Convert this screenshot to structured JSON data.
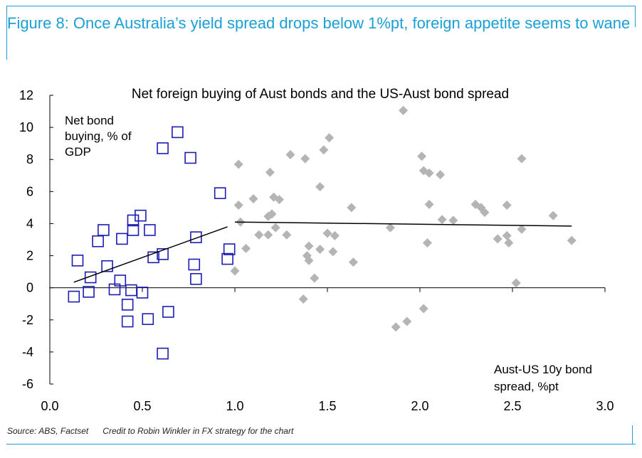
{
  "figure_title": "Figure 8: Once Australia’s yield spread drops below 1%pt, foreign appetite seems to wane",
  "source": "Source: ABS, Factset",
  "credit": "Credit to Robin Winkler in FX strategy for the chart",
  "colors": {
    "accent": "#1aa0d6",
    "blue_squares": "#1c1cb4",
    "grey_diamonds": "#b4b4b4",
    "trend": "#000000"
  },
  "chart_data": {
    "type": "scatter",
    "title": "Net foreign buying of Aust bonds and the US-Aust bond spread",
    "ylabel_lines": [
      "Net bond",
      "buying, % of",
      "GDP"
    ],
    "xlabel_lines": [
      "Aust-US 10y bond",
      "spread, %pt"
    ],
    "xlim": [
      0,
      3
    ],
    "ylim": [
      -6,
      12
    ],
    "x_ticks": [
      "0.0",
      "0.5",
      "1.0",
      "1.5",
      "2.0",
      "2.5",
      "3.0"
    ],
    "x_tick_values": [
      0,
      0.5,
      1,
      1.5,
      2,
      2.5,
      3
    ],
    "y_ticks": [
      "-6",
      "-4",
      "-2",
      "0",
      "2",
      "4",
      "6",
      "8",
      "10",
      "12"
    ],
    "y_tick_values": [
      -6,
      -4,
      -2,
      0,
      2,
      4,
      6,
      8,
      10,
      12
    ],
    "series": [
      {
        "marker": "square",
        "points": [
          [
            0.13,
            -0.55
          ],
          [
            0.15,
            1.7
          ],
          [
            0.21,
            -0.25
          ],
          [
            0.22,
            0.65
          ],
          [
            0.26,
            2.9
          ],
          [
            0.29,
            3.6
          ],
          [
            0.31,
            1.35
          ],
          [
            0.35,
            -0.1
          ],
          [
            0.38,
            0.45
          ],
          [
            0.39,
            3.05
          ],
          [
            0.42,
            -1.05
          ],
          [
            0.42,
            -2.1
          ],
          [
            0.44,
            -0.15
          ],
          [
            0.45,
            4.2
          ],
          [
            0.45,
            3.6
          ],
          [
            0.49,
            4.5
          ],
          [
            0.5,
            -0.3
          ],
          [
            0.53,
            -1.95
          ],
          [
            0.54,
            3.6
          ],
          [
            0.56,
            1.9
          ],
          [
            0.61,
            -4.1
          ],
          [
            0.61,
            2.1
          ],
          [
            0.61,
            8.7
          ],
          [
            0.64,
            -1.5
          ],
          [
            0.69,
            9.7
          ],
          [
            0.76,
            8.1
          ],
          [
            0.78,
            1.45
          ],
          [
            0.79,
            0.55
          ],
          [
            0.79,
            3.15
          ],
          [
            0.92,
            5.9
          ],
          [
            0.96,
            1.8
          ],
          [
            0.97,
            2.4
          ]
        ]
      },
      {
        "marker": "diamond",
        "points": [
          [
            1.0,
            1.05
          ],
          [
            1.02,
            5.15
          ],
          [
            1.02,
            7.7
          ],
          [
            1.03,
            4.1
          ],
          [
            1.06,
            2.45
          ],
          [
            1.1,
            5.55
          ],
          [
            1.13,
            3.3
          ],
          [
            1.18,
            4.45
          ],
          [
            1.18,
            3.3
          ],
          [
            1.19,
            7.2
          ],
          [
            1.2,
            4.6
          ],
          [
            1.21,
            5.65
          ],
          [
            1.22,
            3.75
          ],
          [
            1.24,
            5.5
          ],
          [
            1.28,
            3.3
          ],
          [
            1.3,
            8.3
          ],
          [
            1.37,
            -0.7
          ],
          [
            1.38,
            8.05
          ],
          [
            1.39,
            2.0
          ],
          [
            1.4,
            1.7
          ],
          [
            1.4,
            2.6
          ],
          [
            1.43,
            0.6
          ],
          [
            1.46,
            2.4
          ],
          [
            1.46,
            6.3
          ],
          [
            1.48,
            8.6
          ],
          [
            1.5,
            3.4
          ],
          [
            1.51,
            9.35
          ],
          [
            1.53,
            2.25
          ],
          [
            1.54,
            3.25
          ],
          [
            1.63,
            5.0
          ],
          [
            1.64,
            1.6
          ],
          [
            1.84,
            3.75
          ],
          [
            1.87,
            -2.45
          ],
          [
            1.91,
            11.05
          ],
          [
            1.93,
            -2.1
          ],
          [
            2.01,
            8.2
          ],
          [
            2.02,
            7.3
          ],
          [
            2.02,
            -1.3
          ],
          [
            2.04,
            2.8
          ],
          [
            2.05,
            7.15
          ],
          [
            2.05,
            5.2
          ],
          [
            2.11,
            7.05
          ],
          [
            2.12,
            4.25
          ],
          [
            2.18,
            4.2
          ],
          [
            2.3,
            5.2
          ],
          [
            2.33,
            5.0
          ],
          [
            2.35,
            4.7
          ],
          [
            2.42,
            3.05
          ],
          [
            2.47,
            3.25
          ],
          [
            2.47,
            5.15
          ],
          [
            2.48,
            2.8
          ],
          [
            2.52,
            0.3
          ],
          [
            2.55,
            3.65
          ],
          [
            2.55,
            8.05
          ],
          [
            2.72,
            4.5
          ],
          [
            2.82,
            2.95
          ]
        ]
      }
    ],
    "trend_lines": [
      {
        "x": [
          0.13,
          0.96
        ],
        "y": [
          0.35,
          3.8
        ]
      },
      {
        "x": [
          1.0,
          2.82
        ],
        "y": [
          4.1,
          3.85
        ]
      }
    ]
  }
}
